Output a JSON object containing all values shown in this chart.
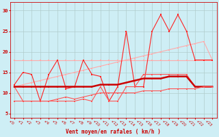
{
  "x": [
    0,
    1,
    2,
    3,
    4,
    5,
    6,
    7,
    8,
    9,
    10,
    11,
    12,
    13,
    14,
    15,
    16,
    17,
    18,
    19,
    20,
    21,
    22,
    23
  ],
  "line_flat_pink": [
    18,
    18,
    18,
    18,
    18,
    18,
    18,
    18,
    18,
    18,
    18,
    18,
    18,
    18,
    18,
    18,
    18,
    18,
    18,
    18,
    18,
    18,
    18,
    18
  ],
  "line_diag_pink": [
    11.5,
    12,
    12.5,
    13,
    13.5,
    14,
    14.5,
    15,
    15.5,
    16,
    16.5,
    17,
    17.5,
    18,
    18.5,
    19,
    19.5,
    20,
    20.5,
    21,
    21.5,
    22,
    22.5,
    18
  ],
  "line_rafales": [
    12,
    15,
    14.5,
    8,
    14.5,
    18,
    11,
    11.5,
    18,
    14.5,
    14,
    8,
    11.5,
    25,
    11.5,
    11.5,
    25,
    29,
    25,
    29,
    25,
    18,
    18,
    18
  ],
  "line_mean_zigzag": [
    11.5,
    8,
    8,
    8,
    8,
    8,
    8,
    8,
    8.5,
    8,
    11.5,
    8,
    8,
    11.5,
    11.5,
    14.5,
    14.5,
    14.5,
    14.5,
    14.5,
    14.5,
    11.5,
    11.5,
    11.5
  ],
  "line_mean_smooth": [
    11.5,
    11.5,
    11.5,
    11.5,
    11.5,
    11.5,
    11.5,
    11.5,
    11.5,
    11.5,
    12,
    12,
    12,
    12.5,
    13,
    13.5,
    13.5,
    13.5,
    14,
    14,
    14,
    11.5,
    11.5,
    11.5
  ],
  "line_baseline": [
    8,
    8,
    8,
    8,
    8,
    8.5,
    9,
    8.5,
    9,
    9.5,
    10,
    10,
    10,
    10,
    10,
    10.5,
    10.5,
    10.5,
    11,
    11,
    11,
    11,
    11.5,
    11.5
  ],
  "bg_color": "#ceeef5",
  "grid_color": "#b0cccc",
  "color_light_pink": "#ffaaaa",
  "color_bright_red": "#ff2222",
  "color_dark_red": "#cc0000",
  "color_med_red": "#ff5555",
  "xlabel": "Vent moyen/en rafales ( km/h )",
  "ylabel_ticks": [
    5,
    10,
    15,
    20,
    25,
    30
  ],
  "xlim": [
    -0.5,
    23.5
  ],
  "ylim": [
    4,
    32
  ],
  "figsize": [
    3.2,
    2.0
  ],
  "dpi": 100
}
